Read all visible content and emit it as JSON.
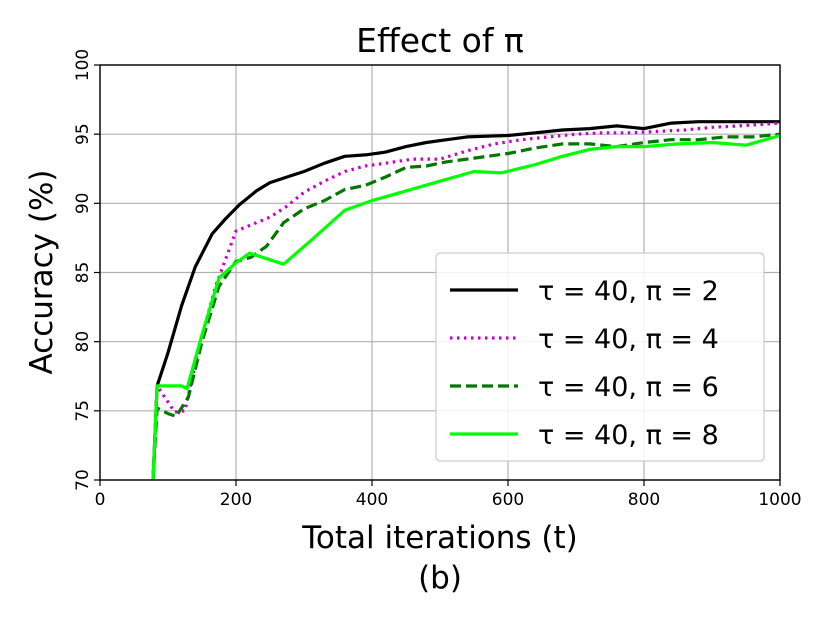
{
  "chart_data": {
    "type": "line",
    "title": "Effect of π",
    "xlabel": "Total iterations (t)",
    "ylabel": "Accuracy (%)",
    "caption": "(b)",
    "xlim": [
      0,
      1000
    ],
    "ylim": [
      70,
      100
    ],
    "xticks": [
      0,
      200,
      400,
      600,
      800,
      1000
    ],
    "yticks": [
      70,
      75,
      80,
      85,
      90,
      95,
      100
    ],
    "grid": true,
    "legend_position": "lower-right",
    "series": [
      {
        "name": "τ = 40, π = 2",
        "color": "#000000",
        "dash": "solid",
        "x": [
          78,
          84,
          100,
          120,
          140,
          165,
          185,
          205,
          230,
          250,
          275,
          300,
          330,
          360,
          390,
          420,
          450,
          480,
          510,
          540,
          570,
          600,
          640,
          680,
          720,
          760,
          800,
          840,
          880,
          920,
          960,
          1000
        ],
        "y": [
          70,
          76.8,
          79.2,
          82.6,
          85.4,
          87.8,
          88.9,
          89.9,
          90.9,
          91.5,
          91.9,
          92.3,
          92.9,
          93.4,
          93.5,
          93.7,
          94.1,
          94.4,
          94.6,
          94.8,
          94.85,
          94.9,
          95.1,
          95.3,
          95.4,
          95.6,
          95.4,
          95.8,
          95.9,
          95.9,
          95.9,
          95.9
        ]
      },
      {
        "name": "τ = 40, π = 4",
        "color": "#cc00cc",
        "dash": "dotted",
        "x": [
          78,
          84,
          95,
          110,
          125,
          145,
          170,
          200,
          225,
          250,
          275,
          300,
          330,
          360,
          390,
          420,
          460,
          500,
          540,
          580,
          620,
          660,
          700,
          740,
          780,
          820,
          860,
          900,
          940,
          1000
        ],
        "y": [
          70,
          76.8,
          76.0,
          74.9,
          75.0,
          79.5,
          84.0,
          88.0,
          88.5,
          89.0,
          89.8,
          90.8,
          91.6,
          92.3,
          92.7,
          92.9,
          93.2,
          93.2,
          93.8,
          94.3,
          94.6,
          94.8,
          95.0,
          95.1,
          95.1,
          95.2,
          95.3,
          95.5,
          95.6,
          95.8
        ]
      },
      {
        "name": "τ = 40, π = 6",
        "color": "#007700",
        "dash": "dashed",
        "x": [
          78,
          84,
          100,
          112,
          130,
          150,
          175,
          200,
          222,
          245,
          270,
          300,
          330,
          360,
          390,
          420,
          450,
          480,
          510,
          540,
          570,
          600,
          640,
          680,
          720,
          760,
          800,
          840,
          880,
          920,
          960,
          1000
        ],
        "y": [
          70,
          75.2,
          74.8,
          74.6,
          76.0,
          80.0,
          84.0,
          85.8,
          86.1,
          86.9,
          88.6,
          89.6,
          90.2,
          91.0,
          91.3,
          91.9,
          92.6,
          92.7,
          93.0,
          93.2,
          93.4,
          93.6,
          94.0,
          94.3,
          94.3,
          94.1,
          94.4,
          94.6,
          94.6,
          94.8,
          94.8,
          95.0
        ]
      },
      {
        "name": "τ = 40, π = 8",
        "color": "#00ff00",
        "dash": "solid",
        "x": [
          78,
          84,
          100,
          120,
          128,
          150,
          175,
          200,
          220,
          245,
          270,
          310,
          360,
          400,
          450,
          500,
          550,
          590,
          640,
          680,
          720,
          760,
          800,
          850,
          900,
          950,
          1000
        ],
        "y": [
          70,
          76.8,
          76.8,
          76.8,
          76.6,
          80.5,
          84.6,
          85.7,
          86.4,
          86.0,
          85.6,
          87.3,
          89.5,
          90.2,
          90.9,
          91.6,
          92.3,
          92.2,
          92.8,
          93.4,
          93.9,
          94.1,
          94.1,
          94.3,
          94.4,
          94.2,
          94.9
        ]
      }
    ]
  }
}
